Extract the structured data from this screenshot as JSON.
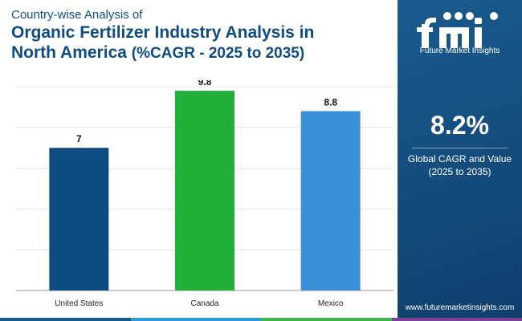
{
  "header": {
    "subtitle": "Country-wise Analysis of",
    "title_line1": "Organic Fertilizer Industry Analysis in",
    "title_line2": "North America",
    "title_cagr": "(%CAGR - 2025 to 2035)"
  },
  "sidebar": {
    "logo_text": "Future Market Insights",
    "cagr_value": "8.2%",
    "cagr_label_line1": "Global CAGR and Value",
    "cagr_label_line2": "(2025 to 2035)",
    "website": "www.futuremarketinsights.com"
  },
  "colors": {
    "brand_blue": "#0f4c81",
    "sidebar_bg": "#15507f",
    "bottom_strip": [
      "#1a5a8e",
      "#2e9bd6",
      "#3fb54a",
      "#7e3f98"
    ]
  },
  "chart_data": {
    "type": "bar",
    "categories": [
      "United States",
      "Canada",
      "Mexico"
    ],
    "values": [
      7,
      9.8,
      8.8
    ],
    "value_labels": [
      "7",
      "9.8",
      "8.8"
    ],
    "bar_colors": [
      "#0f4c81",
      "#22b03b",
      "#3b8fd6"
    ],
    "ylim": [
      0,
      10
    ],
    "grid": true
  }
}
